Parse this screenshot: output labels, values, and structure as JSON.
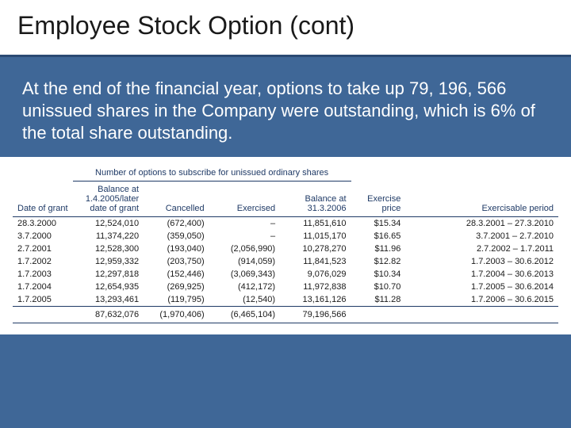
{
  "slide": {
    "title": "Employee Stock Option (cont)",
    "body": "At the end of the financial year, options to take up 79, 196, 566 unissued shares in the Company were outstanding, which is 6% of the total share outstanding.",
    "background_color": "#3f6797",
    "title_band_color": "#ffffff",
    "title_underline_color": "#2b4a73",
    "text_color": "#ffffff",
    "title_fontsize": 32,
    "body_fontsize": 22
  },
  "table": {
    "type": "table",
    "group_header": "Number of options to subscribe for unissued ordinary shares",
    "header_color": "#1f3a66",
    "border_color": "#1f3a66",
    "background_color": "#ffffff",
    "fontsize": 11,
    "columns": [
      {
        "key": "date_of_grant",
        "label": "Date of grant",
        "align": "left"
      },
      {
        "key": "balance_start",
        "label": "Balance at 1.4.2005/later date of grant",
        "align": "right"
      },
      {
        "key": "cancelled",
        "label": "Cancelled",
        "align": "right"
      },
      {
        "key": "exercised",
        "label": "Exercised",
        "align": "right"
      },
      {
        "key": "balance_end",
        "label": "Balance at 31.3.2006",
        "align": "right"
      },
      {
        "key": "exercise_price",
        "label": "Exercise price",
        "align": "right"
      },
      {
        "key": "exercisable_period",
        "label": "Exercisable period",
        "align": "right"
      }
    ],
    "rows": [
      {
        "date_of_grant": "28.3.2000",
        "balance_start": "12,524,010",
        "cancelled": "(672,400)",
        "exercised": "–",
        "balance_end": "11,851,610",
        "exercise_price": "$15.34",
        "exercisable_period": "28.3.2001 – 27.3.2010"
      },
      {
        "date_of_grant": "3.7.2000",
        "balance_start": "11,374,220",
        "cancelled": "(359,050)",
        "exercised": "–",
        "balance_end": "11,015,170",
        "exercise_price": "$16.65",
        "exercisable_period": "3.7.2001 –   2.7.2010"
      },
      {
        "date_of_grant": "2.7.2001",
        "balance_start": "12,528,300",
        "cancelled": "(193,040)",
        "exercised": "(2,056,990)",
        "balance_end": "10,278,270",
        "exercise_price": "$11.96",
        "exercisable_period": "2.7.2002 –   1.7.2011"
      },
      {
        "date_of_grant": "1.7.2002",
        "balance_start": "12,959,332",
        "cancelled": "(203,750)",
        "exercised": "(914,059)",
        "balance_end": "11,841,523",
        "exercise_price": "$12.82",
        "exercisable_period": "1.7.2003 – 30.6.2012"
      },
      {
        "date_of_grant": "1.7.2003",
        "balance_start": "12,297,818",
        "cancelled": "(152,446)",
        "exercised": "(3,069,343)",
        "balance_end": "9,076,029",
        "exercise_price": "$10.34",
        "exercisable_period": "1.7.2004 – 30.6.2013"
      },
      {
        "date_of_grant": "1.7.2004",
        "balance_start": "12,654,935",
        "cancelled": "(269,925)",
        "exercised": "(412,172)",
        "balance_end": "11,972,838",
        "exercise_price": "$10.70",
        "exercisable_period": "1.7.2005 – 30.6.2014"
      },
      {
        "date_of_grant": "1.7.2005",
        "balance_start": "13,293,461",
        "cancelled": "(119,795)",
        "exercised": "(12,540)",
        "balance_end": "13,161,126",
        "exercise_price": "$11.28",
        "exercisable_period": "1.7.2006 – 30.6.2015"
      }
    ],
    "totals": {
      "balance_start": "87,632,076",
      "cancelled": "(1,970,406)",
      "exercised": "(6,465,104)",
      "balance_end": "79,196,566"
    }
  }
}
